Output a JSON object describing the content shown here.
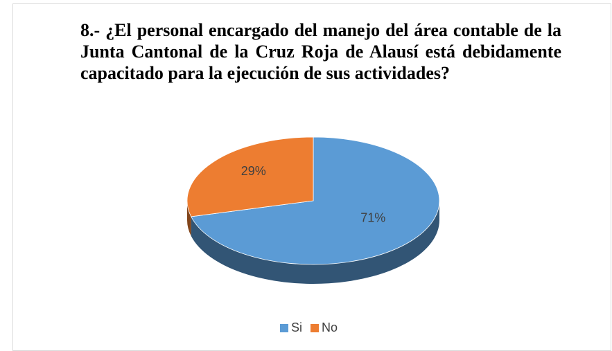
{
  "chart_data": {
    "type": "pie3d",
    "title": "8.- ¿El personal encargado del manejo del área contable de la Junta Cantonal de la Cruz Roja de Alausí está debidamente capacitado para la ejecución de sus actividades?",
    "categories": [
      "Si",
      "No"
    ],
    "values": [
      71,
      29
    ],
    "value_labels": [
      "71%",
      "29%"
    ],
    "colors": [
      "#5b9bd5",
      "#ed7d31"
    ],
    "legend": "bottom"
  }
}
